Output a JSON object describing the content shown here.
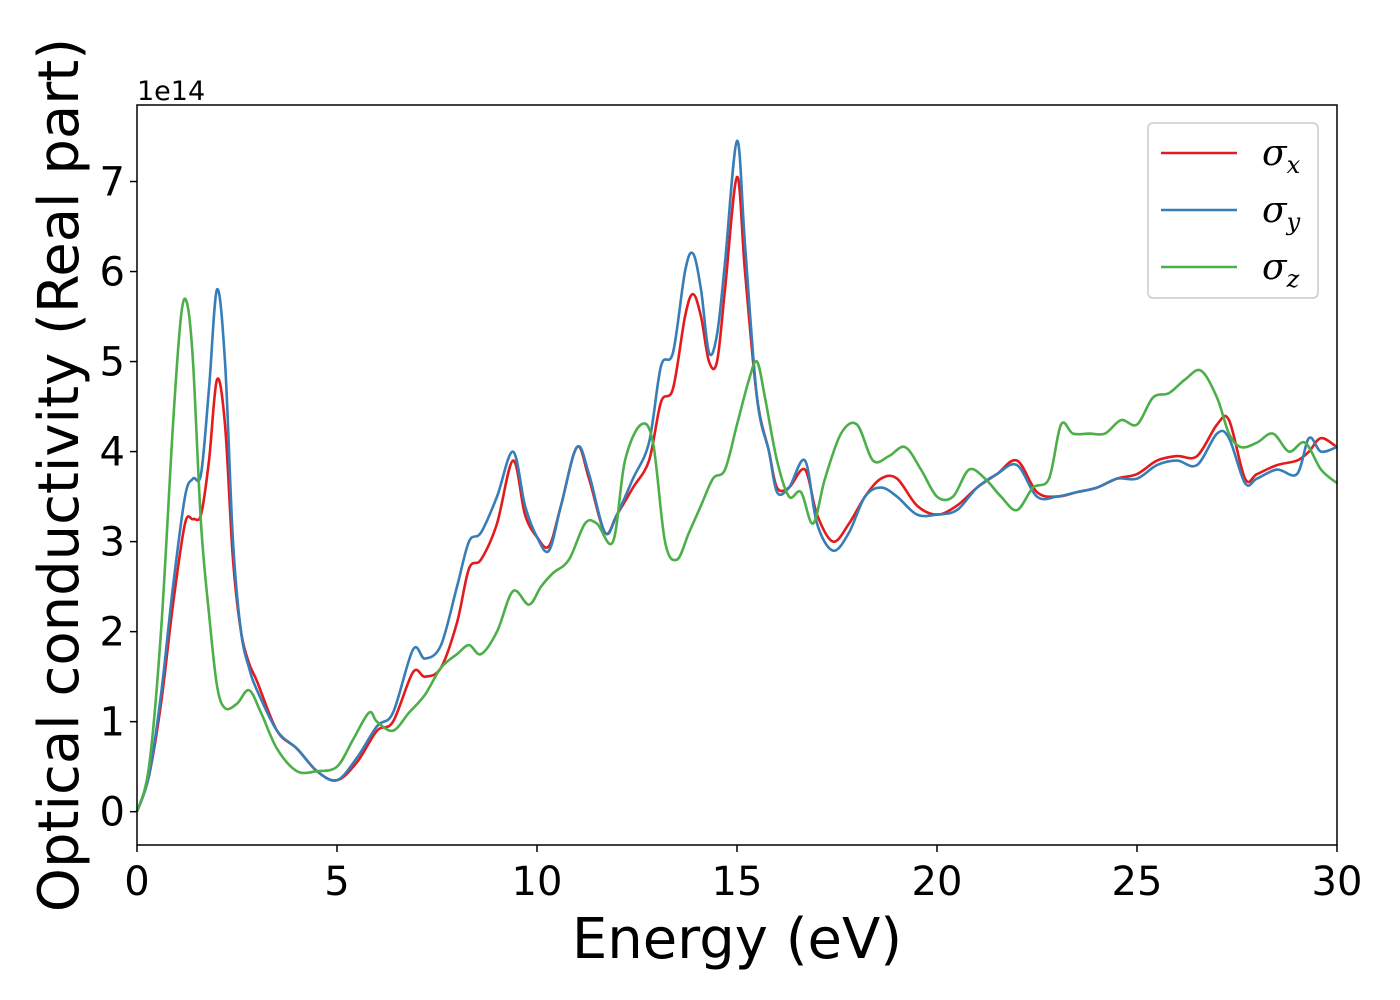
{
  "chart_data": {
    "type": "line",
    "xlabel": "Energy (eV)",
    "ylabel": "Optical conductivity (Real part)",
    "y_offset_label": "1e14",
    "xlim": [
      0,
      30
    ],
    "ylim": [
      -0.37,
      7.85
    ],
    "x_ticks": [
      0,
      5,
      10,
      15,
      20,
      25,
      30
    ],
    "y_ticks": [
      0,
      1,
      2,
      3,
      4,
      5,
      6,
      7
    ],
    "grid": false,
    "legend_position": "top-right",
    "series": [
      {
        "name": "σx",
        "symbol": "σ",
        "subscript": "x",
        "color": "#e41a1c",
        "x": [
          0,
          0.3,
          0.6,
          0.9,
          1.2,
          1.4,
          1.6,
          1.8,
          2.0,
          2.2,
          2.4,
          2.6,
          2.8,
          3.0,
          3.5,
          4.0,
          4.5,
          5.0,
          5.5,
          6.0,
          6.4,
          6.9,
          7.2,
          7.6,
          8.0,
          8.3,
          8.6,
          9.0,
          9.4,
          9.7,
          10.0,
          10.3,
          10.6,
          11.0,
          11.3,
          11.7,
          12.0,
          12.4,
          12.8,
          13.1,
          13.4,
          13.7,
          13.9,
          14.1,
          14.3,
          14.5,
          14.7,
          15.0,
          15.2,
          15.5,
          15.8,
          16.0,
          16.3,
          16.7,
          17.0,
          17.4,
          17.8,
          18.2,
          18.6,
          19.0,
          19.5,
          20.0,
          20.5,
          21.0,
          21.5,
          22.0,
          22.5,
          23.0,
          23.5,
          24.0,
          24.5,
          25.0,
          25.5,
          26.0,
          26.5,
          27.0,
          27.3,
          27.7,
          28.0,
          28.5,
          29.0,
          29.3,
          29.6,
          30.0
        ],
        "y": [
          0,
          0.4,
          1.2,
          2.3,
          3.2,
          3.25,
          3.3,
          3.9,
          4.8,
          4.3,
          2.8,
          2.0,
          1.65,
          1.45,
          0.9,
          0.7,
          0.45,
          0.35,
          0.55,
          0.9,
          1.0,
          1.55,
          1.5,
          1.6,
          2.1,
          2.7,
          2.8,
          3.2,
          3.9,
          3.3,
          3.05,
          2.95,
          3.4,
          4.05,
          3.7,
          3.1,
          3.3,
          3.6,
          3.9,
          4.55,
          4.7,
          5.5,
          5.75,
          5.5,
          5.0,
          5.0,
          5.8,
          7.05,
          6.0,
          4.6,
          4.0,
          3.6,
          3.6,
          3.8,
          3.3,
          3.0,
          3.2,
          3.5,
          3.7,
          3.7,
          3.4,
          3.3,
          3.4,
          3.6,
          3.75,
          3.9,
          3.55,
          3.5,
          3.55,
          3.6,
          3.7,
          3.75,
          3.9,
          3.95,
          3.95,
          4.3,
          4.35,
          3.7,
          3.75,
          3.85,
          3.9,
          4.0,
          4.15,
          4.05
        ]
      },
      {
        "name": "σy",
        "symbol": "σ",
        "subscript": "y",
        "color": "#377eb8",
        "x": [
          0,
          0.3,
          0.6,
          0.9,
          1.2,
          1.4,
          1.6,
          1.8,
          2.0,
          2.2,
          2.4,
          2.6,
          2.8,
          3.0,
          3.5,
          4.0,
          4.5,
          5.0,
          5.5,
          6.0,
          6.4,
          6.9,
          7.2,
          7.6,
          8.0,
          8.3,
          8.6,
          9.0,
          9.4,
          9.7,
          10.0,
          10.3,
          10.6,
          11.0,
          11.3,
          11.7,
          12.0,
          12.4,
          12.8,
          13.1,
          13.4,
          13.7,
          13.9,
          14.1,
          14.3,
          14.5,
          14.7,
          15.0,
          15.2,
          15.5,
          15.8,
          16.0,
          16.3,
          16.7,
          17.0,
          17.4,
          17.8,
          18.2,
          18.6,
          19.0,
          19.5,
          20.0,
          20.5,
          21.0,
          21.5,
          22.0,
          22.5,
          23.0,
          23.5,
          24.0,
          24.5,
          25.0,
          25.5,
          26.0,
          26.5,
          27.0,
          27.3,
          27.7,
          28.0,
          28.5,
          29.0,
          29.3,
          29.6,
          30.0
        ],
        "y": [
          0,
          0.4,
          1.3,
          2.5,
          3.5,
          3.7,
          3.75,
          4.7,
          5.8,
          5.0,
          3.0,
          2.0,
          1.6,
          1.35,
          0.9,
          0.7,
          0.45,
          0.35,
          0.6,
          0.95,
          1.1,
          1.8,
          1.7,
          1.85,
          2.5,
          3.0,
          3.1,
          3.5,
          4.0,
          3.4,
          3.05,
          2.9,
          3.4,
          4.05,
          3.75,
          3.1,
          3.3,
          3.7,
          4.1,
          4.95,
          5.1,
          6.0,
          6.2,
          5.8,
          5.1,
          5.3,
          6.1,
          7.45,
          6.3,
          4.6,
          4.0,
          3.55,
          3.6,
          3.9,
          3.2,
          2.9,
          3.1,
          3.5,
          3.6,
          3.5,
          3.3,
          3.3,
          3.35,
          3.6,
          3.75,
          3.85,
          3.5,
          3.5,
          3.55,
          3.6,
          3.7,
          3.7,
          3.85,
          3.9,
          3.85,
          4.2,
          4.15,
          3.65,
          3.7,
          3.8,
          3.75,
          4.15,
          4.0,
          4.05
        ]
      },
      {
        "name": "σz",
        "symbol": "σ",
        "subscript": "z",
        "color": "#4daf4a",
        "x": [
          0,
          0.3,
          0.6,
          0.9,
          1.1,
          1.25,
          1.4,
          1.6,
          1.8,
          2.0,
          2.2,
          2.5,
          2.8,
          3.1,
          3.5,
          4.0,
          4.5,
          5.0,
          5.4,
          5.8,
          6.0,
          6.4,
          6.8,
          7.2,
          7.6,
          8.0,
          8.3,
          8.6,
          9.0,
          9.4,
          9.8,
          10.1,
          10.4,
          10.8,
          11.2,
          11.5,
          11.9,
          12.2,
          12.6,
          12.9,
          13.2,
          13.5,
          13.8,
          14.1,
          14.4,
          14.7,
          15.0,
          15.3,
          15.5,
          15.7,
          16.0,
          16.3,
          16.6,
          16.9,
          17.2,
          17.6,
          18.0,
          18.4,
          18.8,
          19.2,
          19.6,
          20.0,
          20.4,
          20.8,
          21.2,
          21.6,
          22.0,
          22.4,
          22.8,
          23.1,
          23.4,
          23.8,
          24.2,
          24.6,
          25.0,
          25.4,
          25.8,
          26.2,
          26.6,
          27.0,
          27.3,
          27.6,
          28.0,
          28.4,
          28.8,
          29.2,
          29.6,
          30.0
        ],
        "y": [
          0,
          0.5,
          2.0,
          4.3,
          5.5,
          5.65,
          5.0,
          3.2,
          2.2,
          1.4,
          1.15,
          1.2,
          1.35,
          1.1,
          0.7,
          0.45,
          0.45,
          0.5,
          0.8,
          1.1,
          1.0,
          0.9,
          1.1,
          1.3,
          1.6,
          1.75,
          1.85,
          1.75,
          2.0,
          2.45,
          2.3,
          2.5,
          2.65,
          2.8,
          3.2,
          3.2,
          3.0,
          3.9,
          4.3,
          4.1,
          3.0,
          2.8,
          3.1,
          3.4,
          3.7,
          3.8,
          4.3,
          4.8,
          5.0,
          4.6,
          3.9,
          3.5,
          3.55,
          3.2,
          3.7,
          4.2,
          4.3,
          3.9,
          3.95,
          4.05,
          3.8,
          3.5,
          3.5,
          3.8,
          3.7,
          3.5,
          3.35,
          3.6,
          3.7,
          4.3,
          4.2,
          4.2,
          4.2,
          4.35,
          4.3,
          4.6,
          4.65,
          4.8,
          4.9,
          4.6,
          4.2,
          4.05,
          4.1,
          4.2,
          4.0,
          4.1,
          3.8,
          3.65
        ]
      }
    ]
  }
}
